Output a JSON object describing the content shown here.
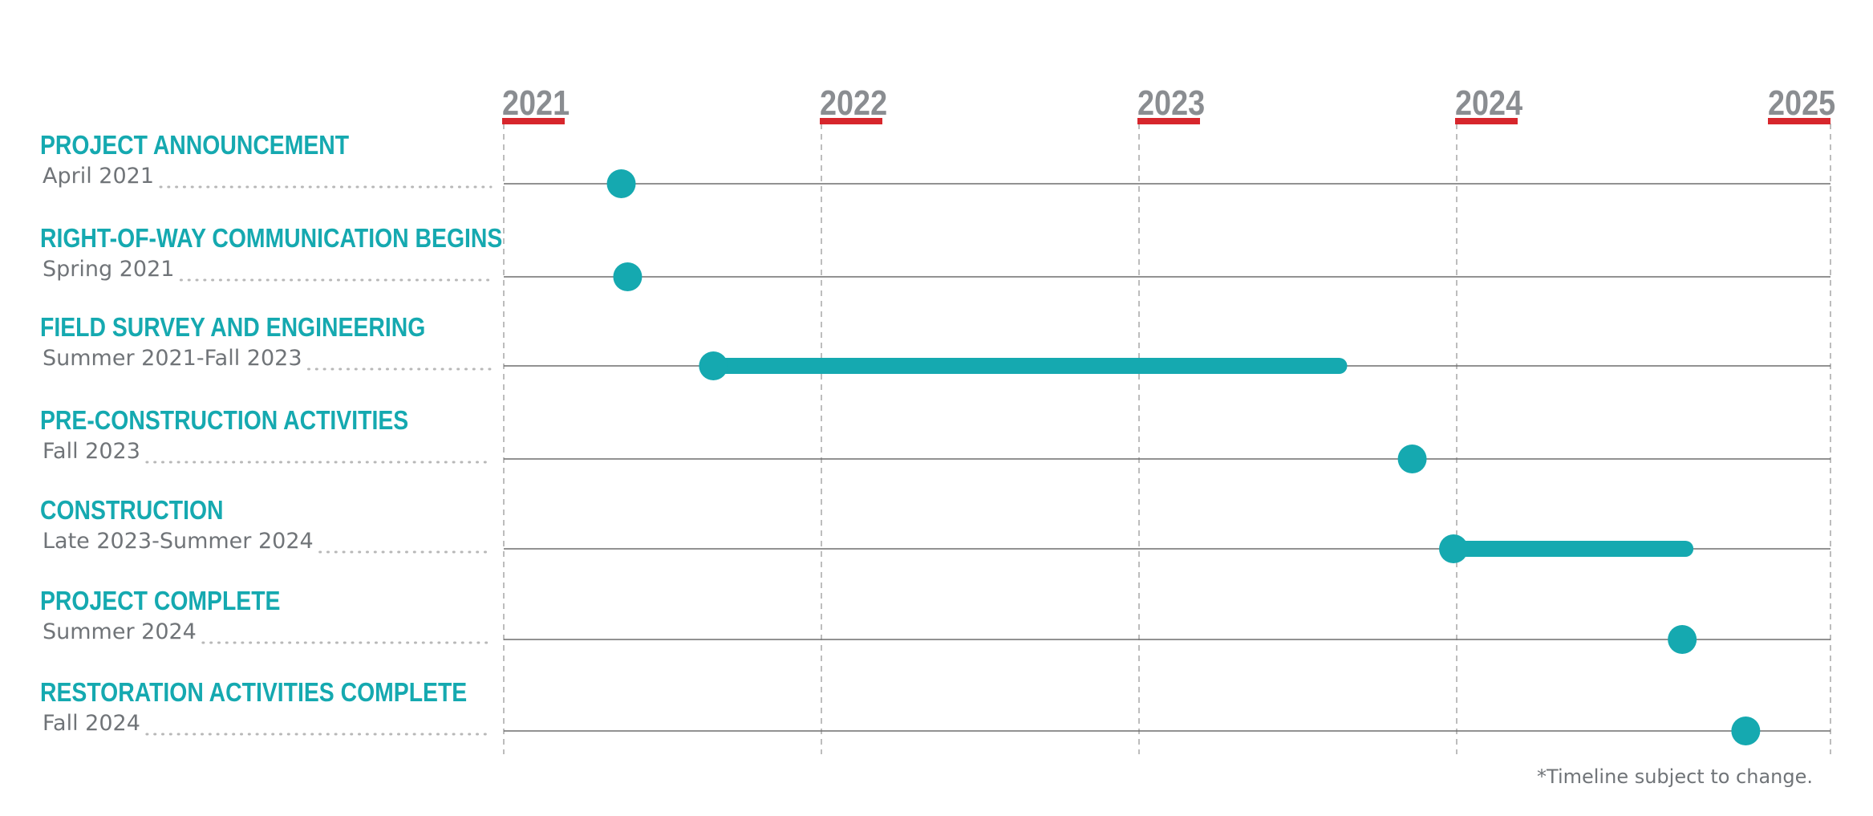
{
  "chart_data": {
    "type": "timeline",
    "years": [
      "2021",
      "2022",
      "2023",
      "2024",
      "2025"
    ],
    "x_range": [
      2021.0,
      2025.0
    ],
    "grid": "vertical dashed lines at each year",
    "tasks": [
      {
        "title": "PROJECT ANNOUNCEMENT",
        "date_label": "April 2021",
        "start": 2021.37,
        "end": null
      },
      {
        "title": "RIGHT-OF-WAY COMMUNICATION BEGINS",
        "date_label": "Spring 2021",
        "start": 2021.39,
        "end": null
      },
      {
        "title": "FIELD SURVEY AND ENGINEERING",
        "date_label": "Summer 2021-Fall 2023",
        "start": 2021.66,
        "end": 2023.63
      },
      {
        "title": "PRE-CONSTRUCTION ACTIVITIES",
        "date_label": "Fall 2023",
        "start": 2023.86,
        "end": null
      },
      {
        "title": "CONSTRUCTION",
        "date_label": "Late 2023-Summer 2024",
        "start": 2023.99,
        "end": 2024.72
      },
      {
        "title": "PROJECT COMPLETE",
        "date_label": "Summer 2024",
        "start": 2024.71,
        "end": null
      },
      {
        "title": "RESTORATION ACTIVITIES COMPLETE",
        "date_label": "Fall 2024",
        "start": 2024.91,
        "end": null
      }
    ],
    "footnote": "*Timeline subject to change."
  },
  "colors": {
    "accent": "#15a9b0",
    "year_underline": "#d7262c",
    "year_text": "#8a8d91",
    "label_text": "#707478",
    "track_line": "#6e6e6e",
    "grid": "#bdbdbd",
    "leader_dots": "#b8b8b8"
  }
}
